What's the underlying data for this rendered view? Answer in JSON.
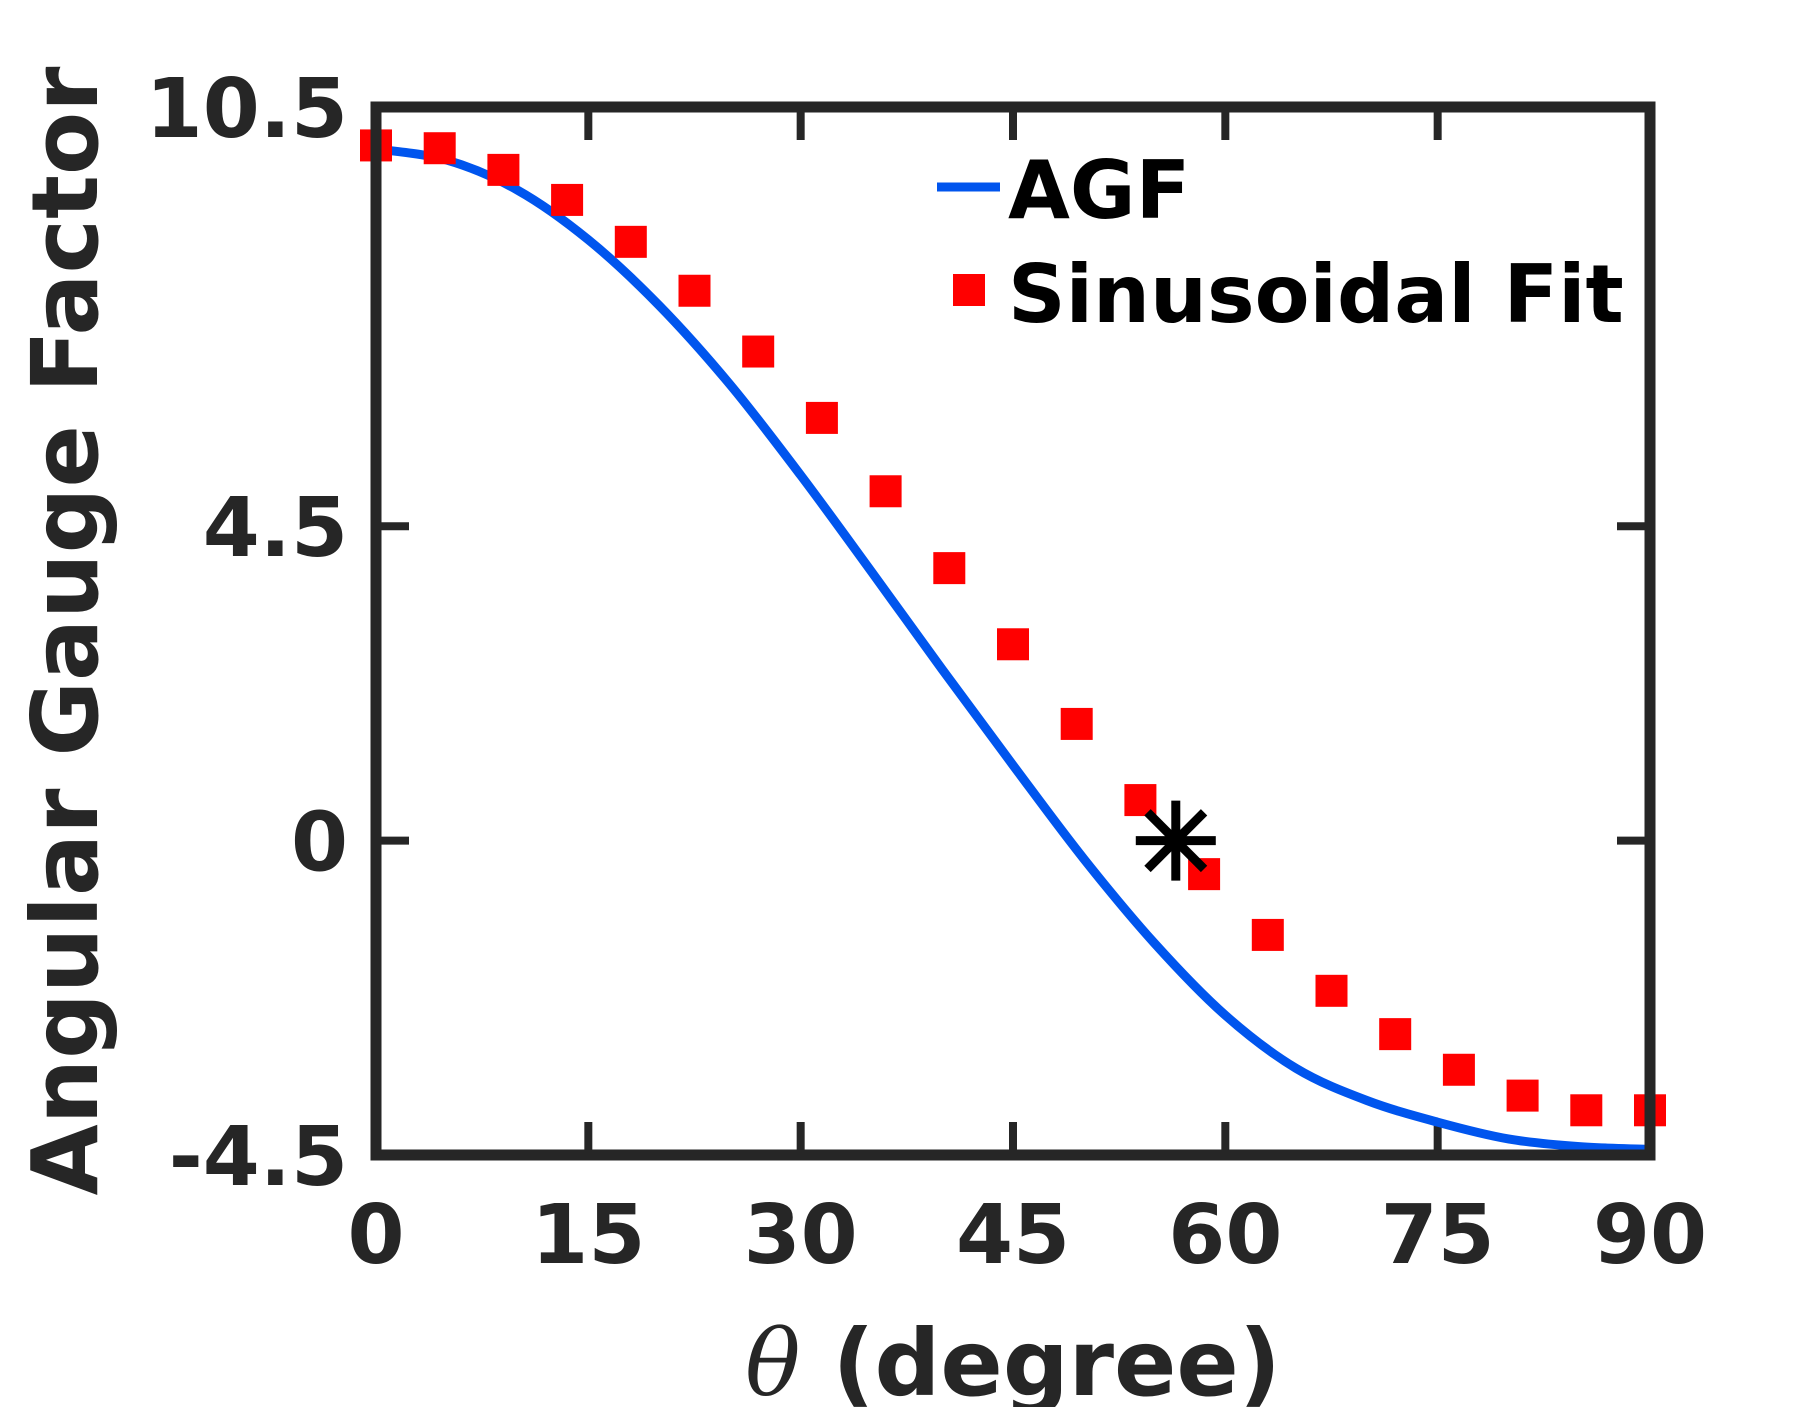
{
  "chart_data": {
    "type": "line",
    "title": "",
    "xlabel_symbol": "θ",
    "xlabel_text": " (degree)",
    "ylabel": "Angular Gauge Factor",
    "xlim": [
      0,
      90
    ],
    "ylim": [
      -4.5,
      10.5
    ],
    "xticks": [
      0,
      15,
      30,
      45,
      60,
      75,
      90
    ],
    "xtick_labels": [
      "0",
      "15",
      "30",
      "45",
      "60",
      "75",
      "90"
    ],
    "yticks": [
      -4.5,
      0,
      4.5,
      10.5
    ],
    "ytick_labels": [
      "-4.5",
      "0",
      "4.5",
      "10.5"
    ],
    "grid": false,
    "legend_position": "top-right",
    "series": [
      {
        "name": "AGF",
        "kind": "line",
        "color": "#0055ee",
        "x": [
          0,
          5,
          10,
          15,
          20,
          25,
          30,
          35,
          40,
          45,
          50,
          55,
          60,
          65,
          70,
          75,
          80,
          85,
          90
        ],
        "values": [
          9.9,
          9.74,
          9.31,
          8.6,
          7.66,
          6.53,
          5.23,
          3.85,
          2.45,
          1.08,
          -0.26,
          -1.47,
          -2.5,
          -3.26,
          -3.72,
          -4.03,
          -4.27,
          -4.38,
          -4.42
        ]
      },
      {
        "name": "Sinusoidal Fit",
        "kind": "scatter",
        "marker": "square",
        "color": "#ff0000",
        "x": [
          0,
          4.5,
          9,
          13.5,
          18,
          22.5,
          27,
          31.5,
          36,
          40.5,
          45,
          49.5,
          54,
          58.5,
          63,
          67.5,
          72,
          76.5,
          81,
          85.5,
          90
        ],
        "values": [
          9.95,
          9.91,
          9.6,
          9.17,
          8.57,
          7.87,
          7.0,
          6.05,
          5.0,
          3.9,
          2.81,
          1.67,
          0.58,
          -0.48,
          -1.35,
          -2.15,
          -2.77,
          -3.28,
          -3.65,
          -3.86,
          -3.86
        ]
      }
    ],
    "annotations": [
      {
        "type": "marker",
        "symbol": "asterisk",
        "color": "#000000",
        "x": 56.5,
        "y": 0
      }
    ]
  }
}
